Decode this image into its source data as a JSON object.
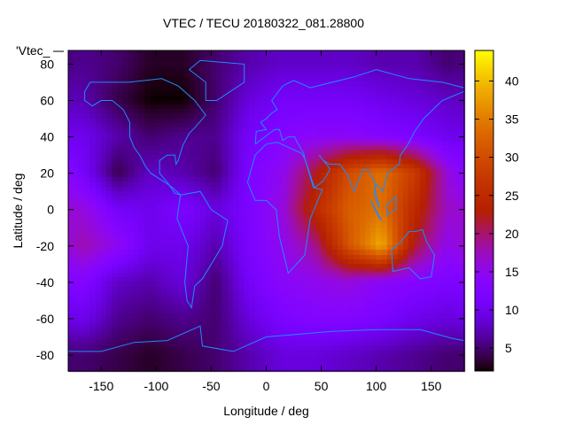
{
  "chart_data": {
    "type": "heatmap",
    "title": "VTEC / TECU 20180322_081.28800",
    "xlabel": "Longitude / deg",
    "ylabel": "Latitude / deg",
    "legend_key": "'Vtec_",
    "xlim": [
      -180,
      180
    ],
    "ylim": [
      -88.75,
      87.5
    ],
    "xticks": [
      -150,
      -100,
      -50,
      0,
      50,
      100,
      150
    ],
    "yticks": [
      80,
      60,
      40,
      20,
      0,
      -20,
      -40,
      -60,
      -80
    ],
    "colorbar": {
      "range": [
        2,
        44
      ],
      "ticks": [
        5,
        10,
        15,
        20,
        25,
        30,
        35,
        40
      ]
    },
    "grid_lon": [
      -165,
      -135,
      -105,
      -75,
      -45,
      -15,
      15,
      45,
      75,
      105,
      135,
      165
    ],
    "grid_lat": [
      80,
      60,
      40,
      20,
      0,
      -20,
      -40,
      -60,
      -80
    ],
    "values": [
      [
        6,
        5,
        3,
        3,
        5,
        7,
        8,
        8,
        8,
        7,
        7,
        5
      ],
      [
        7,
        4,
        2,
        2,
        5,
        9,
        11,
        11,
        11,
        10,
        9,
        8
      ],
      [
        10,
        7,
        5,
        6,
        6,
        11,
        13,
        14,
        14,
        13,
        12,
        10
      ],
      [
        11,
        4,
        8,
        7,
        5,
        12,
        15,
        22,
        30,
        34,
        28,
        16
      ],
      [
        16,
        11,
        10,
        12,
        9,
        12,
        16,
        25,
        32,
        34,
        25,
        17
      ],
      [
        18,
        15,
        10,
        10,
        7,
        12,
        15,
        19,
        31,
        39,
        22,
        15
      ],
      [
        13,
        8,
        7,
        9,
        5,
        11,
        14,
        15,
        16,
        14,
        13,
        12
      ],
      [
        10,
        6,
        5,
        6,
        5,
        9,
        12,
        13,
        13,
        12,
        10,
        9
      ],
      [
        5,
        4,
        3,
        4,
        5,
        7,
        9,
        9,
        8,
        7,
        6,
        5
      ]
    ],
    "coastline_color": "#1e8cff"
  }
}
